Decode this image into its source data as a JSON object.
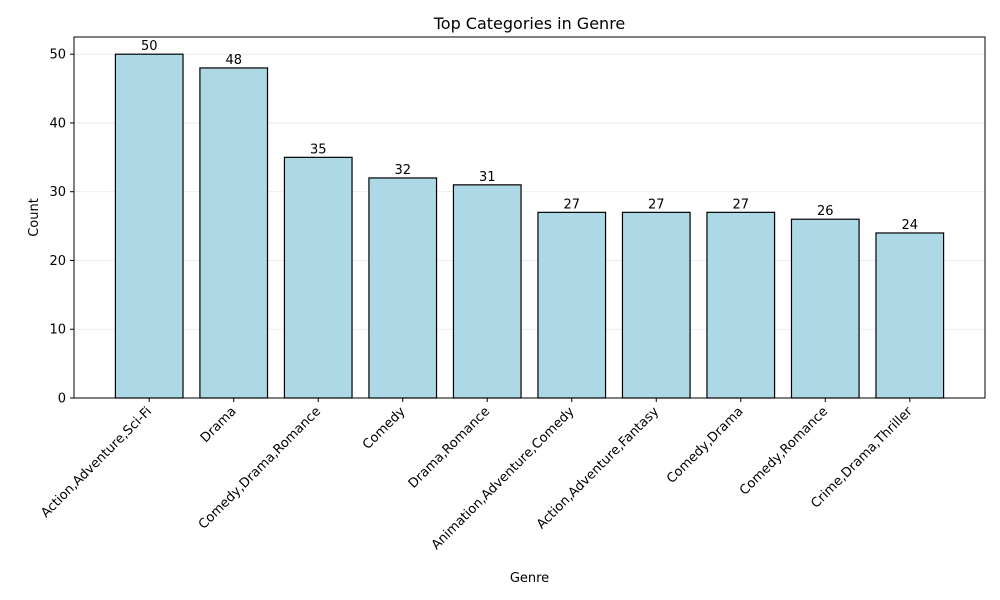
{
  "chart_data": {
    "type": "bar",
    "title": "Top Categories in Genre",
    "xlabel": "Genre",
    "ylabel": "Count",
    "categories": [
      "Action,Adventure,Sci-Fi",
      "Drama",
      "Comedy,Drama,Romance",
      "Comedy",
      "Drama,Romance",
      "Animation,Adventure,Comedy",
      "Action,Adventure,Fantasy",
      "Comedy,Drama",
      "Comedy,Romance",
      "Crime,Drama,Thriller"
    ],
    "values": [
      50,
      48,
      35,
      32,
      31,
      27,
      27,
      27,
      26,
      24
    ],
    "data_labels": [
      "50",
      "48",
      "35",
      "32",
      "31",
      "27",
      "27",
      "27",
      "26",
      "24"
    ],
    "yticks": [
      0,
      10,
      20,
      30,
      40,
      50
    ],
    "ytick_labels": [
      "0",
      "10",
      "20",
      "30",
      "40",
      "50"
    ],
    "ylim": [
      0,
      52.5
    ],
    "grid": "horizontal",
    "legend": "none",
    "colors": {
      "bar_fill": "#add8e6",
      "bar_edge": "#000000",
      "grid": "#e6e6e6",
      "axis": "#000000"
    }
  }
}
